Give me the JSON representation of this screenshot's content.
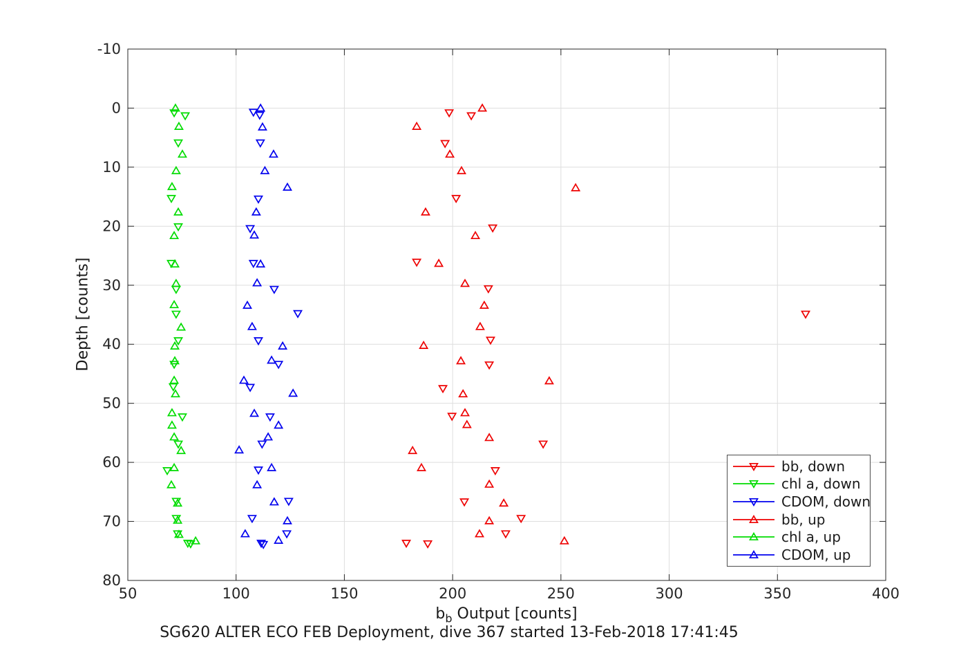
{
  "chart_data": {
    "type": "scatter",
    "title": "SG620 ALTER ECO FEB Deployment, dive 367 started 13-Feb-2018 17:41:45",
    "ylabel": "Depth [counts]",
    "xlabel_parts": {
      "base": "b",
      "sub": "b",
      "rest": " Output [counts]"
    },
    "xlim": [
      50,
      400
    ],
    "ylim": [
      -10,
      80
    ],
    "y_axis_reversed_depth": true,
    "xticks": [
      50,
      100,
      150,
      200,
      250,
      300,
      350,
      400
    ],
    "yticks": [
      -10,
      0,
      10,
      20,
      30,
      40,
      50,
      60,
      70,
      80
    ],
    "grid": true,
    "legend_position": "lower-right-inside",
    "series": [
      {
        "name": "bb, down",
        "color": "#ee0000",
        "marker": "triangle-down",
        "points": [
          [
            198.4,
            0.8
          ],
          [
            208.6,
            1.3
          ],
          [
            196.5,
            6.0
          ],
          [
            201.6,
            15.3
          ],
          [
            218.5,
            20.3
          ],
          [
            183.4,
            26.1
          ],
          [
            216.5,
            30.6
          ],
          [
            363.0,
            34.9
          ],
          [
            217.5,
            39.3
          ],
          [
            216.9,
            43.5
          ],
          [
            195.5,
            47.5
          ],
          [
            199.7,
            52.2
          ],
          [
            241.8,
            56.9
          ],
          [
            219.7,
            61.4
          ],
          [
            205.4,
            66.7
          ],
          [
            231.6,
            69.5
          ],
          [
            224.5,
            72.1
          ],
          [
            178.6,
            73.7
          ],
          [
            188.5,
            73.8
          ]
        ]
      },
      {
        "name": "chl a, down",
        "color": "#00dc00",
        "marker": "triangle-down",
        "points": [
          [
            71.4,
            0.8
          ],
          [
            76.5,
            1.3
          ],
          [
            73.3,
            5.9
          ],
          [
            70.1,
            15.3
          ],
          [
            73.3,
            20.1
          ],
          [
            70.1,
            26.3
          ],
          [
            72.3,
            30.7
          ],
          [
            72.3,
            34.9
          ],
          [
            73.3,
            39.4
          ],
          [
            71.4,
            43.4
          ],
          [
            71.0,
            47.2
          ],
          [
            75.2,
            52.3
          ],
          [
            73.3,
            56.9
          ],
          [
            68.2,
            61.4
          ],
          [
            72.4,
            66.6
          ],
          [
            72.4,
            69.5
          ],
          [
            73.0,
            72.1
          ],
          [
            77.7,
            73.7
          ],
          [
            79.0,
            73.8
          ]
        ]
      },
      {
        "name": "CDOM, down",
        "color": "#0000ee",
        "marker": "triangle-down",
        "points": [
          [
            108.0,
            0.7
          ],
          [
            110.9,
            1.2
          ],
          [
            111.2,
            5.9
          ],
          [
            110.3,
            15.4
          ],
          [
            106.5,
            20.4
          ],
          [
            108.0,
            26.3
          ],
          [
            117.6,
            30.7
          ],
          [
            128.5,
            34.8
          ],
          [
            110.3,
            39.4
          ],
          [
            119.6,
            43.4
          ],
          [
            106.5,
            47.3
          ],
          [
            115.7,
            52.3
          ],
          [
            112.0,
            56.9
          ],
          [
            110.3,
            61.3
          ],
          [
            124.3,
            66.6
          ],
          [
            107.4,
            69.5
          ],
          [
            123.4,
            72.1
          ],
          [
            111.6,
            73.7
          ],
          [
            112.6,
            73.9
          ]
        ]
      },
      {
        "name": "bb, up",
        "color": "#ee0000",
        "marker": "triangle-up",
        "points": [
          [
            213.7,
            0.0
          ],
          [
            183.4,
            3.1
          ],
          [
            198.7,
            7.8
          ],
          [
            204.1,
            10.6
          ],
          [
            256.8,
            13.5
          ],
          [
            187.5,
            17.6
          ],
          [
            210.5,
            21.6
          ],
          [
            193.6,
            26.3
          ],
          [
            205.7,
            29.7
          ],
          [
            214.6,
            33.4
          ],
          [
            212.7,
            37.0
          ],
          [
            186.6,
            40.2
          ],
          [
            203.8,
            42.8
          ],
          [
            244.6,
            46.2
          ],
          [
            204.8,
            48.4
          ],
          [
            205.7,
            51.6
          ],
          [
            206.6,
            53.6
          ],
          [
            216.9,
            55.8
          ],
          [
            181.5,
            58.0
          ],
          [
            185.6,
            60.9
          ],
          [
            216.9,
            63.7
          ],
          [
            223.6,
            66.9
          ],
          [
            216.9,
            69.9
          ],
          [
            212.4,
            72.1
          ],
          [
            251.6,
            73.3
          ]
        ]
      },
      {
        "name": "chl a, up",
        "color": "#00dc00",
        "marker": "triangle-up",
        "points": [
          [
            72.0,
            0.0
          ],
          [
            73.6,
            3.1
          ],
          [
            75.2,
            7.8
          ],
          [
            72.3,
            10.6
          ],
          [
            70.4,
            13.3
          ],
          [
            73.3,
            17.6
          ],
          [
            71.4,
            21.6
          ],
          [
            71.7,
            26.4
          ],
          [
            72.3,
            29.7
          ],
          [
            71.4,
            33.3
          ],
          [
            74.6,
            37.1
          ],
          [
            71.7,
            40.3
          ],
          [
            71.7,
            42.8
          ],
          [
            71.4,
            46.1
          ],
          [
            72.0,
            48.4
          ],
          [
            70.4,
            51.6
          ],
          [
            70.4,
            53.7
          ],
          [
            71.4,
            55.7
          ],
          [
            74.6,
            58.0
          ],
          [
            71.4,
            60.9
          ],
          [
            70.1,
            63.8
          ],
          [
            73.0,
            66.9
          ],
          [
            73.0,
            69.8
          ],
          [
            73.6,
            72.2
          ],
          [
            81.3,
            73.3
          ]
        ]
      },
      {
        "name": "CDOM, up",
        "color": "#0000ee",
        "marker": "triangle-up",
        "points": [
          [
            111.3,
            0.0
          ],
          [
            112.2,
            3.2
          ],
          [
            117.3,
            7.8
          ],
          [
            113.3,
            10.6
          ],
          [
            123.7,
            13.4
          ],
          [
            109.3,
            17.6
          ],
          [
            108.4,
            21.5
          ],
          [
            111.3,
            26.4
          ],
          [
            109.7,
            29.6
          ],
          [
            105.2,
            33.4
          ],
          [
            107.4,
            37.0
          ],
          [
            121.5,
            40.3
          ],
          [
            116.4,
            42.7
          ],
          [
            103.6,
            46.1
          ],
          [
            126.3,
            48.3
          ],
          [
            108.4,
            51.7
          ],
          [
            119.6,
            53.7
          ],
          [
            114.8,
            55.7
          ],
          [
            101.4,
            57.9
          ],
          [
            116.4,
            60.9
          ],
          [
            109.7,
            63.8
          ],
          [
            117.6,
            66.7
          ],
          [
            123.7,
            69.9
          ],
          [
            104.2,
            72.1
          ],
          [
            119.6,
            73.2
          ]
        ]
      }
    ],
    "style": {
      "grid_color": "#dedede",
      "axis_color": "#262626",
      "tick_label_color": "#262626"
    }
  }
}
